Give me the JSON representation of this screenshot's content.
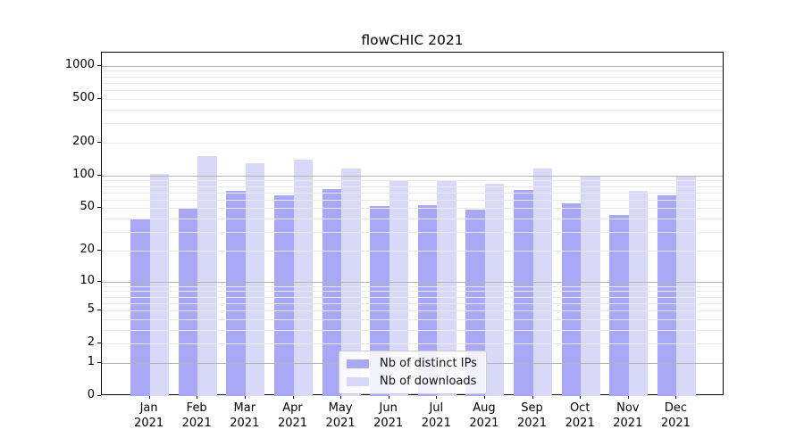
{
  "chart_data": {
    "type": "bar",
    "title": "flowCHIC 2021",
    "months": [
      "Jan",
      "Feb",
      "Mar",
      "Apr",
      "May",
      "Jun",
      "Jul",
      "Aug",
      "Sep",
      "Oct",
      "Nov",
      "Dec"
    ],
    "year": "2021",
    "series": [
      {
        "name": "Nb of distinct IPs",
        "color": "#a8a8f7",
        "values": [
          40,
          50,
          72,
          66,
          75,
          52,
          53,
          48,
          73,
          55,
          43,
          66
        ]
      },
      {
        "name": "Nb of downloads",
        "color": "#d8d8f9",
        "values": [
          103,
          150,
          130,
          140,
          116,
          91,
          89,
          84,
          116,
          98,
          72,
          100
        ]
      }
    ],
    "yaxis": {
      "scale": "log1p",
      "ticks": [
        0,
        1,
        2,
        5,
        10,
        20,
        50,
        100,
        200,
        500,
        1000
      ],
      "major_grid": [
        1,
        10,
        100,
        1000
      ],
      "minor_grid_bases": [
        1,
        10,
        100
      ],
      "max": 1316
    },
    "xlabel": "",
    "ylabel": "",
    "grid": true,
    "legend_position": "lower-center"
  },
  "colors": {
    "major_grid": "#b4b4b4",
    "minor_grid": "#e9e9e9",
    "axis": "#000000",
    "background": "#ffffff"
  }
}
